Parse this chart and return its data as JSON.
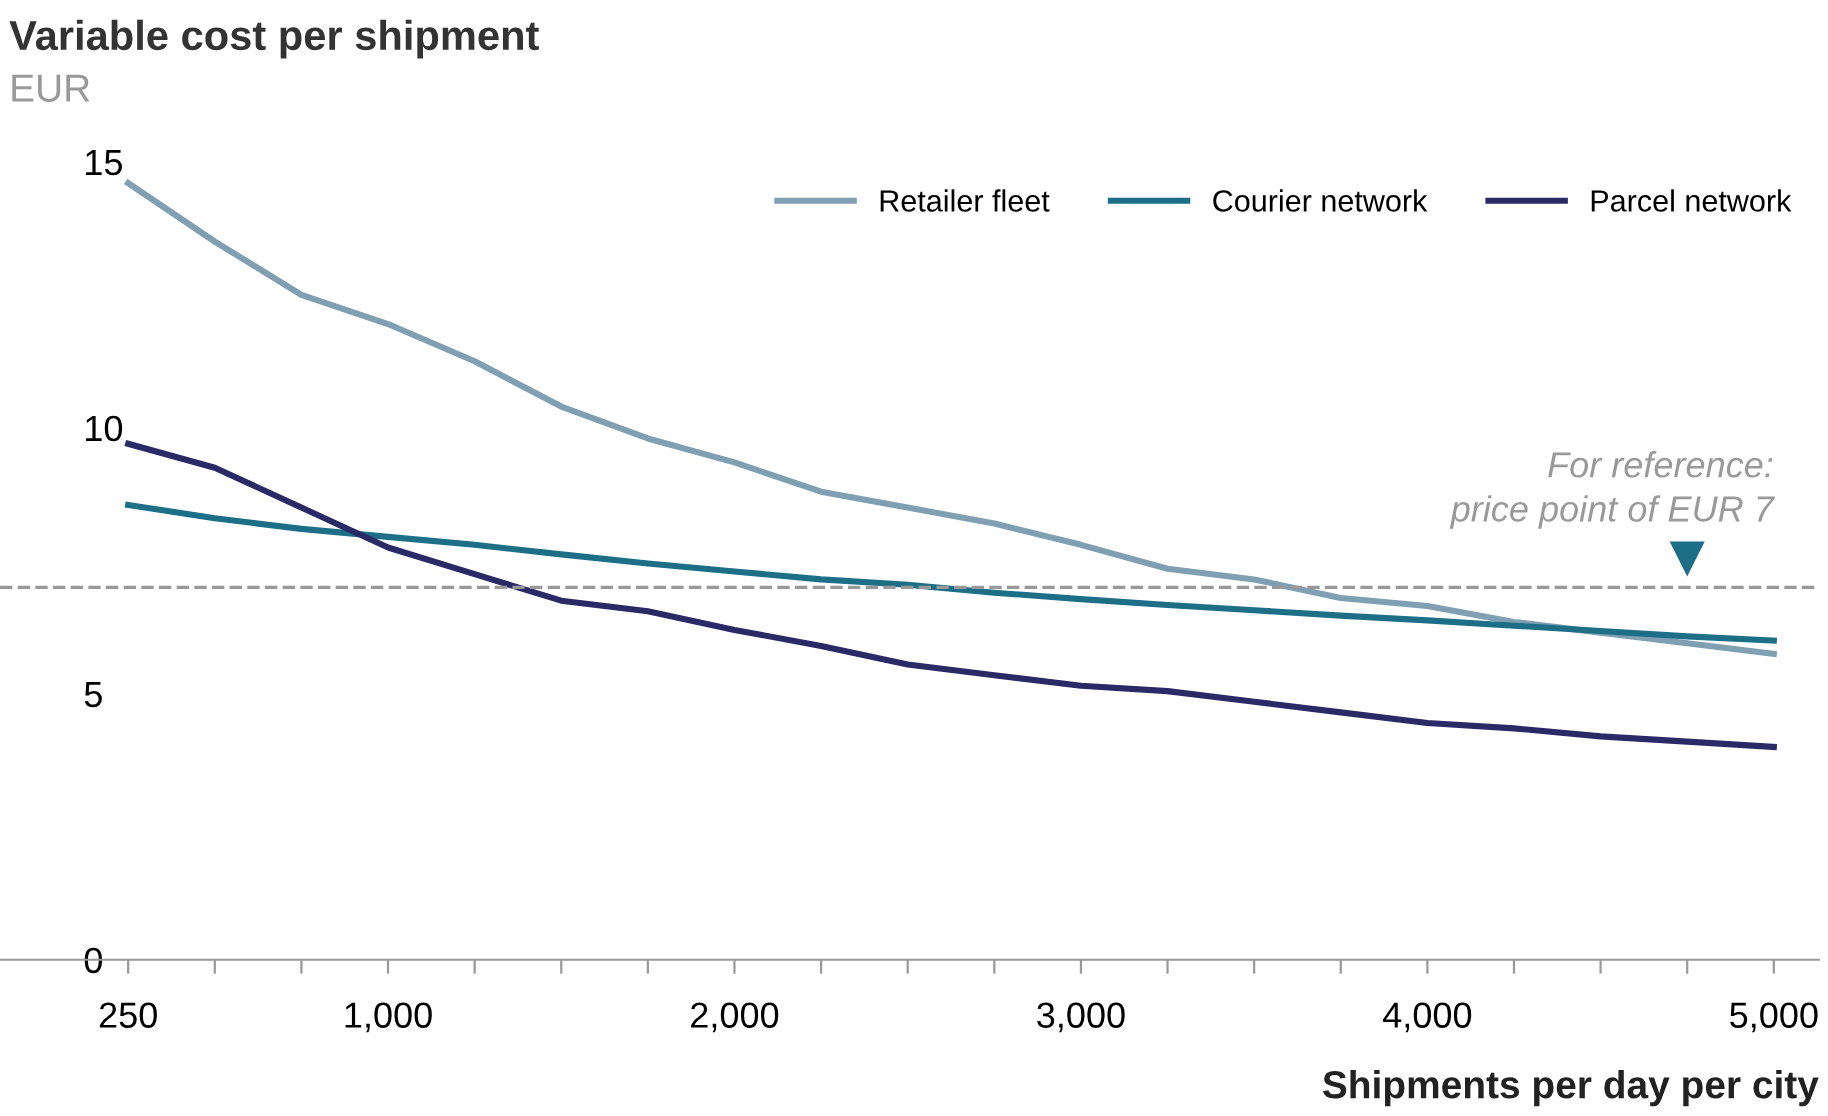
{
  "chart_data": {
    "type": "line",
    "title": "Variable cost per shipment",
    "subtitle": "EUR",
    "xlabel": "Shipments per day per city",
    "x": [
      250,
      500,
      750,
      1000,
      1250,
      1500,
      1750,
      2000,
      2250,
      2500,
      2750,
      3000,
      3250,
      3500,
      3750,
      4000,
      4250,
      4500,
      4750,
      5000
    ],
    "series": [
      {
        "name": "Retailer fleet",
        "color": "#7f9fb2",
        "values": [
          14.6,
          13.5,
          12.5,
          11.95,
          11.25,
          10.4,
          9.8,
          9.35,
          8.8,
          8.5,
          8.2,
          7.8,
          7.35,
          7.15,
          6.8,
          6.65,
          6.35,
          6.15,
          5.95,
          5.75
        ]
      },
      {
        "name": "Courier network",
        "color": "#1c6f86",
        "values": [
          8.55,
          8.3,
          8.1,
          7.95,
          7.8,
          7.62,
          7.45,
          7.3,
          7.15,
          7.05,
          6.9,
          6.78,
          6.67,
          6.57,
          6.47,
          6.38,
          6.28,
          6.18,
          6.08,
          6.0
        ]
      },
      {
        "name": "Parcel network",
        "color": "#2a2a66",
        "values": [
          9.7,
          9.25,
          8.5,
          7.75,
          7.25,
          6.75,
          6.55,
          6.2,
          5.9,
          5.55,
          5.35,
          5.15,
          5.05,
          4.85,
          4.65,
          4.45,
          4.35,
          4.2,
          4.1,
          4.0
        ]
      }
    ],
    "xlim": [
      -120,
      5130
    ],
    "ylim": [
      0,
      15
    ],
    "xticks": [
      250,
      {
        "value": 500,
        "label": null
      },
      {
        "value": 750,
        "label": null
      },
      {
        "value": 1000,
        "label": "1,000"
      },
      {
        "value": 1250,
        "label": null
      },
      {
        "value": 1500,
        "label": null
      },
      {
        "value": 1750,
        "label": null
      },
      {
        "value": 2000,
        "label": "2,000"
      },
      {
        "value": 2250,
        "label": null
      },
      {
        "value": 2500,
        "label": null
      },
      {
        "value": 2750,
        "label": null
      },
      {
        "value": 3000,
        "label": "3,000"
      },
      {
        "value": 3250,
        "label": null
      },
      {
        "value": 3500,
        "label": null
      },
      {
        "value": 3750,
        "label": null
      },
      {
        "value": 4000,
        "label": "4,000"
      },
      {
        "value": 4250,
        "label": null
      },
      {
        "value": 4500,
        "label": null
      },
      {
        "value": 4750,
        "label": null
      },
      {
        "value": 5000,
        "label": "5,000"
      }
    ],
    "yticks": [
      0,
      5,
      10,
      15
    ],
    "ref_lines": [
      {
        "axis": "y",
        "value": 7,
        "label": "For reference:\nprice point of EUR 7",
        "color": "#999999",
        "line_style": "dashed"
      }
    ],
    "grid": false,
    "legend": "top right",
    "line_style": "solid",
    "marker": "none"
  }
}
